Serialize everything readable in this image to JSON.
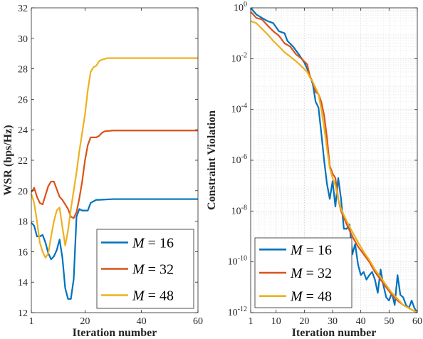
{
  "chart_data": [
    {
      "type": "line",
      "xlabel": "Iteration number",
      "ylabel": "WSR (bps/Hz)",
      "xlim": [
        1,
        60
      ],
      "ylim": [
        12,
        32
      ],
      "x_ticks": [
        1,
        20,
        40,
        60
      ],
      "y_ticks": [
        12,
        14,
        16,
        18,
        20,
        22,
        24,
        26,
        28,
        30,
        32
      ],
      "grid": false,
      "legend_position": "bottom-right",
      "series": [
        {
          "name": "M = 16",
          "color": "#0072BD",
          "points": [
            [
              1,
              17.9
            ],
            [
              2,
              17.7
            ],
            [
              3,
              17.0
            ],
            [
              4,
              17.0
            ],
            [
              5,
              17.1
            ],
            [
              6,
              16.6
            ],
            [
              7,
              15.9
            ],
            [
              8,
              15.5
            ],
            [
              9,
              15.7
            ],
            [
              10,
              16.1
            ],
            [
              11,
              16.8
            ],
            [
              12,
              15.6
            ],
            [
              13,
              13.6
            ],
            [
              14,
              12.9
            ],
            [
              15,
              12.9
            ],
            [
              16,
              14.2
            ],
            [
              17,
              18.3
            ],
            [
              18,
              18.8
            ],
            [
              19,
              18.7
            ],
            [
              20,
              18.7
            ],
            [
              21,
              18.7
            ],
            [
              22,
              19.2
            ],
            [
              23,
              19.3
            ],
            [
              24,
              19.4
            ],
            [
              25,
              19.4
            ],
            [
              30,
              19.45
            ],
            [
              40,
              19.45
            ],
            [
              50,
              19.45
            ],
            [
              60,
              19.45
            ]
          ]
        },
        {
          "name": "M = 32",
          "color": "#D95319",
          "points": [
            [
              1,
              19.9
            ],
            [
              2,
              20.2
            ],
            [
              3,
              19.6
            ],
            [
              4,
              19.2
            ],
            [
              5,
              19.1
            ],
            [
              6,
              19.7
            ],
            [
              7,
              20.3
            ],
            [
              8,
              20.6
            ],
            [
              9,
              20.6
            ],
            [
              10,
              20.1
            ],
            [
              11,
              19.6
            ],
            [
              12,
              19.4
            ],
            [
              13,
              19.1
            ],
            [
              14,
              18.8
            ],
            [
              15,
              18.3
            ],
            [
              16,
              18.2
            ],
            [
              17,
              18.6
            ],
            [
              18,
              19.5
            ],
            [
              19,
              20.6
            ],
            [
              20,
              22.0
            ],
            [
              21,
              23.0
            ],
            [
              22,
              23.5
            ],
            [
              23,
              23.5
            ],
            [
              24,
              23.5
            ],
            [
              25,
              23.6
            ],
            [
              26,
              23.8
            ],
            [
              27,
              23.9
            ],
            [
              30,
              23.95
            ],
            [
              40,
              23.95
            ],
            [
              50,
              23.95
            ],
            [
              60,
              23.95
            ]
          ]
        },
        {
          "name": "M = 48",
          "color": "#EDB120",
          "points": [
            [
              1,
              19.8
            ],
            [
              2,
              19.2
            ],
            [
              3,
              18.0
            ],
            [
              4,
              16.6
            ],
            [
              5,
              16.0
            ],
            [
              6,
              15.6
            ],
            [
              7,
              15.9
            ],
            [
              8,
              17.0
            ],
            [
              9,
              18.0
            ],
            [
              10,
              18.7
            ],
            [
              11,
              18.9
            ],
            [
              12,
              17.6
            ],
            [
              13,
              16.4
            ],
            [
              14,
              17.4
            ],
            [
              15,
              18.8
            ],
            [
              16,
              20.0
            ],
            [
              17,
              21.2
            ],
            [
              18,
              22.6
            ],
            [
              19,
              23.8
            ],
            [
              20,
              25.0
            ],
            [
              21,
              26.6
            ],
            [
              22,
              27.8
            ],
            [
              23,
              28.1
            ],
            [
              24,
              28.2
            ],
            [
              25,
              28.5
            ],
            [
              26,
              28.6
            ],
            [
              28,
              28.7
            ],
            [
              30,
              28.7
            ],
            [
              40,
              28.7
            ],
            [
              50,
              28.7
            ],
            [
              60,
              28.7
            ]
          ]
        }
      ]
    },
    {
      "type": "line",
      "xlabel": "Iteration number",
      "ylabel": "Constraint Violation",
      "xlim": [
        1,
        60
      ],
      "ylim": [
        1e-12,
        1
      ],
      "yscale": "log",
      "x_ticks": [
        1,
        10,
        20,
        30,
        40,
        50,
        60
      ],
      "y_ticks": [
        1e-12,
        1e-10,
        1e-08,
        1e-06,
        0.0001,
        0.01,
        1
      ],
      "y_tick_labels": [
        [
          "10",
          "-12"
        ],
        [
          "10",
          "-10"
        ],
        [
          "10",
          "-8"
        ],
        [
          "10",
          "-6"
        ],
        [
          "10",
          "-4"
        ],
        [
          "10",
          "-2"
        ],
        [
          "10",
          "0"
        ]
      ],
      "grid": true,
      "legend_position": "bottom-left",
      "series": [
        {
          "name": "M = 16",
          "color": "#0072BD",
          "points": [
            [
              1,
              1.0
            ],
            [
              3,
              0.55
            ],
            [
              5,
              0.4
            ],
            [
              7,
              0.3
            ],
            [
              9,
              0.25
            ],
            [
              11,
              0.12
            ],
            [
              13,
              0.1
            ],
            [
              14,
              0.05
            ],
            [
              16,
              0.03
            ],
            [
              18,
              0.015
            ],
            [
              20,
              0.007
            ],
            [
              21,
              0.004
            ],
            [
              22,
              0.002
            ],
            [
              23,
              0.001
            ],
            [
              24,
              0.0002
            ],
            [
              25,
              0.00012
            ],
            [
              26,
              1.2e-05
            ],
            [
              27,
              1e-06
            ],
            [
              28,
              1.2e-07
            ],
            [
              29,
              3e-08
            ],
            [
              30,
              1.5e-07
            ],
            [
              31,
              1.5e-08
            ],
            [
              32,
              2e-07
            ],
            [
              33,
              3e-08
            ],
            [
              34,
              2e-09
            ],
            [
              35,
              2e-09
            ],
            [
              36,
              3e-09
            ],
            [
              37,
              2e-10
            ],
            [
              38,
              5e-10
            ],
            [
              39,
              8e-11
            ],
            [
              40,
              3e-11
            ],
            [
              41,
              4e-11
            ],
            [
              42,
              2e-11
            ],
            [
              43,
              3e-11
            ],
            [
              44,
              4e-11
            ],
            [
              45,
              2e-11
            ],
            [
              46,
              6e-12
            ],
            [
              47,
              5e-11
            ],
            [
              48,
              1.2e-11
            ],
            [
              49,
              4e-12
            ],
            [
              50,
              3e-12
            ],
            [
              51,
              6e-12
            ],
            [
              52,
              2e-12
            ],
            [
              53,
              3e-11
            ],
            [
              54,
              5e-12
            ],
            [
              55,
              4e-12
            ],
            [
              56,
              2e-12
            ],
            [
              57,
              1.5e-12
            ],
            [
              58,
              3e-12
            ],
            [
              59,
              1.5e-12
            ],
            [
              60,
              1e-12
            ]
          ]
        },
        {
          "name": "M = 32",
          "color": "#D95319",
          "points": [
            [
              1,
              0.7
            ],
            [
              3,
              0.4
            ],
            [
              5,
              0.35
            ],
            [
              7,
              0.2
            ],
            [
              9,
              0.12
            ],
            [
              11,
              0.08
            ],
            [
              13,
              0.04
            ],
            [
              15,
              0.03
            ],
            [
              17,
              0.015
            ],
            [
              19,
              0.01
            ],
            [
              21,
              0.006
            ],
            [
              22,
              0.002
            ],
            [
              23,
              0.0012
            ],
            [
              24,
              0.0005
            ],
            [
              25,
              0.0004
            ],
            [
              26,
              0.0002
            ],
            [
              27,
              6e-05
            ],
            [
              28,
              8e-06
            ],
            [
              29,
              6e-07
            ],
            [
              30,
              3e-07
            ],
            [
              31,
              2e-07
            ],
            [
              32,
              3e-08
            ],
            [
              33,
              1e-08
            ],
            [
              35,
              3e-09
            ],
            [
              37,
              1e-09
            ],
            [
              39,
              4e-10
            ],
            [
              41,
              2e-10
            ],
            [
              43,
              1e-10
            ],
            [
              45,
              4e-11
            ],
            [
              47,
              2e-11
            ],
            [
              49,
              1e-11
            ],
            [
              51,
              5e-12
            ],
            [
              53,
              3e-12
            ],
            [
              55,
              2e-12
            ],
            [
              57,
              1.5e-12
            ],
            [
              60,
              1e-12
            ]
          ]
        },
        {
          "name": "M = 48",
          "color": "#EDB120",
          "points": [
            [
              1,
              0.3
            ],
            [
              3,
              0.25
            ],
            [
              5,
              0.15
            ],
            [
              7,
              0.09
            ],
            [
              9,
              0.05
            ],
            [
              11,
              0.03
            ],
            [
              13,
              0.018
            ],
            [
              15,
              0.012
            ],
            [
              17,
              0.008
            ],
            [
              19,
              0.005
            ],
            [
              21,
              0.003
            ],
            [
              22,
              0.0018
            ],
            [
              23,
              0.0012
            ],
            [
              24,
              0.0007
            ],
            [
              25,
              0.0004
            ],
            [
              26,
              0.0001
            ],
            [
              27,
              2e-05
            ],
            [
              28,
              3e-06
            ],
            [
              29,
              5e-07
            ],
            [
              30,
              2e-07
            ],
            [
              31,
              1e-07
            ],
            [
              32,
              3e-08
            ],
            [
              33,
              1.2e-08
            ],
            [
              35,
              4e-09
            ],
            [
              37,
              1.5e-09
            ],
            [
              39,
              6e-10
            ],
            [
              41,
              2.5e-10
            ],
            [
              43,
              1.2e-10
            ],
            [
              45,
              5e-11
            ],
            [
              47,
              2.5e-11
            ],
            [
              49,
              1.2e-11
            ],
            [
              51,
              6e-12
            ],
            [
              53,
              3.5e-12
            ],
            [
              55,
              2e-12
            ],
            [
              57,
              1.5e-12
            ],
            [
              60,
              1e-12
            ]
          ]
        }
      ]
    }
  ]
}
